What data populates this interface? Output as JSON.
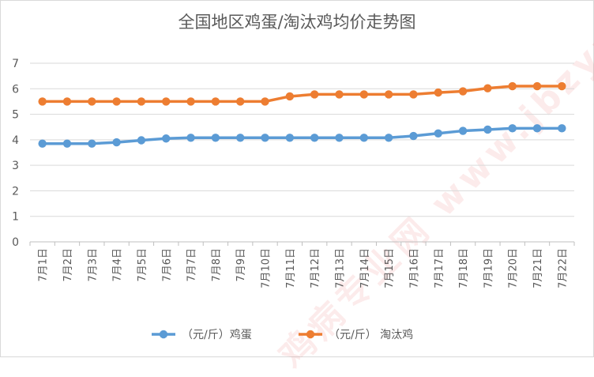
{
  "chart_data": {
    "type": "line",
    "title": "全国地区鸡蛋/淘汰鸡均价走势图",
    "categories": [
      "7月1日",
      "7月2日",
      "7月3日",
      "7月4日",
      "7月5日",
      "7月6日",
      "7月7日",
      "7月8日",
      "7月9日",
      "7月10日",
      "7月11日",
      "7月12日",
      "7月13日",
      "7月14日",
      "7月15日",
      "7月16日",
      "7月17日",
      "7月18日",
      "7月19日",
      "7月20日",
      "7月21日",
      "7月22日"
    ],
    "series": [
      {
        "name": "（元/斤）鸡蛋",
        "color": "#5b9bd5",
        "values": [
          3.85,
          3.85,
          3.85,
          3.9,
          3.98,
          4.05,
          4.08,
          4.08,
          4.08,
          4.08,
          4.08,
          4.08,
          4.08,
          4.08,
          4.08,
          4.15,
          4.25,
          4.35,
          4.4,
          4.45,
          4.45,
          4.45
        ]
      },
      {
        "name": "（元/斤） 淘汰鸡",
        "color": "#ed7d31",
        "values": [
          5.5,
          5.5,
          5.5,
          5.5,
          5.5,
          5.5,
          5.5,
          5.5,
          5.5,
          5.5,
          5.7,
          5.78,
          5.78,
          5.78,
          5.78,
          5.78,
          5.85,
          5.9,
          6.02,
          6.1,
          6.1,
          6.1
        ]
      }
    ],
    "ylim": [
      0,
      7
    ],
    "yticks": [
      0,
      1,
      2,
      3,
      4,
      5,
      6,
      7
    ],
    "grid": true,
    "legend": "bottom"
  },
  "watermark_text": "鸡病专业网 www.jbzyw.com"
}
